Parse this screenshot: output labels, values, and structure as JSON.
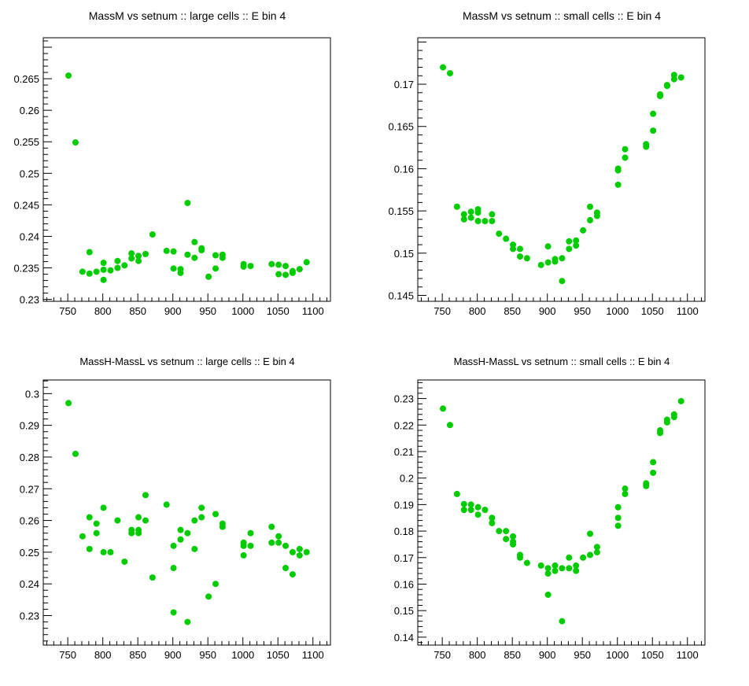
{
  "chart_data": [
    {
      "type": "scatter",
      "title": "MassM vs setnum :: large cells :: E bin 4",
      "xlabel": "",
      "ylabel": "",
      "xlim": [
        715,
        1125
      ],
      "ylim": [
        0.2297,
        0.2715
      ],
      "xticks": [
        750,
        800,
        850,
        900,
        950,
        1000,
        1050,
        1100
      ],
      "yticks": [
        0.23,
        0.235,
        0.24,
        0.245,
        0.25,
        0.255,
        0.26,
        0.265
      ],
      "ytick_labels": [
        "0.23",
        "0.235",
        "0.24",
        "0.245",
        "0.25",
        "0.255",
        "0.26",
        "0.265"
      ],
      "marker_color": "#00cc00",
      "grid": false,
      "points": [
        [
          751,
          0.2655
        ],
        [
          761,
          0.2549
        ],
        [
          771,
          0.2344
        ],
        [
          781,
          0.2375
        ],
        [
          781,
          0.2341
        ],
        [
          791,
          0.2344
        ],
        [
          801,
          0.2358
        ],
        [
          801,
          0.2347
        ],
        [
          801,
          0.2331
        ],
        [
          811,
          0.2346
        ],
        [
          821,
          0.2361
        ],
        [
          821,
          0.235
        ],
        [
          831,
          0.2354
        ],
        [
          841,
          0.2373
        ],
        [
          841,
          0.2365
        ],
        [
          851,
          0.2369
        ],
        [
          851,
          0.2361
        ],
        [
          861,
          0.2372
        ],
        [
          871,
          0.2403
        ],
        [
          891,
          0.2377
        ],
        [
          901,
          0.2376
        ],
        [
          901,
          0.2349
        ],
        [
          911,
          0.2348
        ],
        [
          911,
          0.2342
        ],
        [
          921,
          0.2453
        ],
        [
          921,
          0.2371
        ],
        [
          931,
          0.2391
        ],
        [
          931,
          0.2366
        ],
        [
          941,
          0.2381
        ],
        [
          941,
          0.2378
        ],
        [
          951,
          0.2336
        ],
        [
          961,
          0.237
        ],
        [
          961,
          0.2349
        ],
        [
          971,
          0.2371
        ],
        [
          971,
          0.2366
        ],
        [
          1001,
          0.2356
        ],
        [
          1001,
          0.2352
        ],
        [
          1011,
          0.2353
        ],
        [
          1041,
          0.2356
        ],
        [
          1051,
          0.2355
        ],
        [
          1051,
          0.234
        ],
        [
          1061,
          0.2353
        ],
        [
          1061,
          0.2339
        ],
        [
          1071,
          0.2345
        ],
        [
          1071,
          0.2342
        ],
        [
          1081,
          0.2348
        ],
        [
          1091,
          0.2359
        ]
      ]
    },
    {
      "type": "scatter",
      "title": "MassM vs setnum :: small cells :: E bin 4",
      "xlabel": "",
      "ylabel": "",
      "xlim": [
        715,
        1125
      ],
      "ylim": [
        0.1443,
        0.1755
      ],
      "xticks": [
        750,
        800,
        850,
        900,
        950,
        1000,
        1050,
        1100
      ],
      "yticks": [
        0.145,
        0.15,
        0.155,
        0.16,
        0.165,
        0.17
      ],
      "ytick_labels": [
        "0.145",
        "0.15",
        "0.155",
        "0.16",
        "0.165",
        "0.17"
      ],
      "marker_color": "#00cc00",
      "grid": false,
      "points": [
        [
          751,
          0.172
        ],
        [
          761,
          0.1713
        ],
        [
          771,
          0.1555
        ],
        [
          781,
          0.1546
        ],
        [
          781,
          0.154
        ],
        [
          791,
          0.1549
        ],
        [
          791,
          0.1542
        ],
        [
          801,
          0.1552
        ],
        [
          801,
          0.1548
        ],
        [
          801,
          0.1538
        ],
        [
          811,
          0.1538
        ],
        [
          821,
          0.1546
        ],
        [
          821,
          0.1538
        ],
        [
          831,
          0.1523
        ],
        [
          841,
          0.1517
        ],
        [
          851,
          0.151
        ],
        [
          851,
          0.1505
        ],
        [
          861,
          0.1505
        ],
        [
          861,
          0.1496
        ],
        [
          871,
          0.1494
        ],
        [
          891,
          0.1486
        ],
        [
          901,
          0.1508
        ],
        [
          901,
          0.1489
        ],
        [
          911,
          0.1493
        ],
        [
          911,
          0.149
        ],
        [
          921,
          0.1494
        ],
        [
          921,
          0.1467
        ],
        [
          931,
          0.1514
        ],
        [
          931,
          0.1505
        ],
        [
          941,
          0.1515
        ],
        [
          941,
          0.1509
        ],
        [
          951,
          0.1527
        ],
        [
          961,
          0.1555
        ],
        [
          961,
          0.1539
        ],
        [
          971,
          0.1548
        ],
        [
          971,
          0.1544
        ],
        [
          1001,
          0.16
        ],
        [
          1001,
          0.1598
        ],
        [
          1001,
          0.1581
        ],
        [
          1011,
          0.1623
        ],
        [
          1011,
          0.1613
        ],
        [
          1041,
          0.1629
        ],
        [
          1041,
          0.1626
        ],
        [
          1051,
          0.1665
        ],
        [
          1051,
          0.1645
        ],
        [
          1061,
          0.1688
        ],
        [
          1061,
          0.1686
        ],
        [
          1071,
          0.1699
        ],
        [
          1071,
          0.1698
        ],
        [
          1081,
          0.1711
        ],
        [
          1081,
          0.1706
        ],
        [
          1091,
          0.1708
        ]
      ]
    },
    {
      "type": "scatter",
      "title": "MassH-MassL vs setnum :: large cells :: E bin 4",
      "xlabel": "",
      "ylabel": "",
      "xlim": [
        715,
        1125
      ],
      "ylim": [
        0.2207,
        0.3043
      ],
      "xticks": [
        750,
        800,
        850,
        900,
        950,
        1000,
        1050,
        1100
      ],
      "yticks": [
        0.23,
        0.24,
        0.25,
        0.26,
        0.27,
        0.28,
        0.29,
        0.3
      ],
      "ytick_labels": [
        "0.23",
        "0.24",
        "0.25",
        "0.26",
        "0.27",
        "0.28",
        "0.29",
        "0.3"
      ],
      "marker_color": "#00cc00",
      "grid": false,
      "points": [
        [
          751,
          0.297
        ],
        [
          761,
          0.281
        ],
        [
          771,
          0.255
        ],
        [
          781,
          0.261
        ],
        [
          781,
          0.251
        ],
        [
          791,
          0.259
        ],
        [
          791,
          0.256
        ],
        [
          801,
          0.264
        ],
        [
          801,
          0.25
        ],
        [
          811,
          0.25
        ],
        [
          821,
          0.26
        ],
        [
          831,
          0.247
        ],
        [
          841,
          0.257
        ],
        [
          841,
          0.256
        ],
        [
          851,
          0.261
        ],
        [
          851,
          0.257
        ],
        [
          851,
          0.256
        ],
        [
          861,
          0.268
        ],
        [
          861,
          0.26
        ],
        [
          871,
          0.242
        ],
        [
          891,
          0.265
        ],
        [
          901,
          0.252
        ],
        [
          901,
          0.245
        ],
        [
          901,
          0.231
        ],
        [
          911,
          0.257
        ],
        [
          911,
          0.254
        ],
        [
          921,
          0.256
        ],
        [
          921,
          0.228
        ],
        [
          931,
          0.26
        ],
        [
          931,
          0.251
        ],
        [
          941,
          0.264
        ],
        [
          941,
          0.261
        ],
        [
          951,
          0.236
        ],
        [
          961,
          0.262
        ],
        [
          961,
          0.24
        ],
        [
          971,
          0.259
        ],
        [
          971,
          0.258
        ],
        [
          1001,
          0.253
        ],
        [
          1001,
          0.252
        ],
        [
          1001,
          0.249
        ],
        [
          1011,
          0.256
        ],
        [
          1011,
          0.252
        ],
        [
          1041,
          0.258
        ],
        [
          1041,
          0.253
        ],
        [
          1051,
          0.255
        ],
        [
          1051,
          0.253
        ],
        [
          1061,
          0.252
        ],
        [
          1061,
          0.245
        ],
        [
          1071,
          0.25
        ],
        [
          1071,
          0.243
        ],
        [
          1081,
          0.251
        ],
        [
          1081,
          0.249
        ],
        [
          1091,
          0.25
        ]
      ]
    },
    {
      "type": "scatter",
      "title": "MassH-MassL vs setnum :: small cells :: E bin 4",
      "xlabel": "",
      "ylabel": "",
      "xlim": [
        715,
        1125
      ],
      "ylim": [
        0.137,
        0.237
      ],
      "xticks": [
        750,
        800,
        850,
        900,
        950,
        1000,
        1050,
        1100
      ],
      "yticks": [
        0.14,
        0.15,
        0.16,
        0.17,
        0.18,
        0.19,
        0.2,
        0.21,
        0.22,
        0.23
      ],
      "ytick_labels": [
        "0.14",
        "0.15",
        "0.16",
        "0.17",
        "0.18",
        "0.19",
        "0.2",
        "0.21",
        "0.22",
        "0.23"
      ],
      "marker_color": "#00cc00",
      "grid": false,
      "points": [
        [
          751,
          0.2262
        ],
        [
          761,
          0.22
        ],
        [
          771,
          0.194
        ],
        [
          781,
          0.1902
        ],
        [
          781,
          0.188
        ],
        [
          791,
          0.19
        ],
        [
          791,
          0.188
        ],
        [
          801,
          0.189
        ],
        [
          801,
          0.1862
        ],
        [
          811,
          0.188
        ],
        [
          821,
          0.185
        ],
        [
          821,
          0.183
        ],
        [
          831,
          0.18
        ],
        [
          841,
          0.18
        ],
        [
          841,
          0.177
        ],
        [
          851,
          0.178
        ],
        [
          851,
          0.176
        ],
        [
          851,
          0.175
        ],
        [
          861,
          0.171
        ],
        [
          861,
          0.17
        ],
        [
          871,
          0.168
        ],
        [
          891,
          0.167
        ],
        [
          901,
          0.166
        ],
        [
          901,
          0.164
        ],
        [
          901,
          0.156
        ],
        [
          911,
          0.167
        ],
        [
          911,
          0.165
        ],
        [
          921,
          0.166
        ],
        [
          921,
          0.146
        ],
        [
          931,
          0.17
        ],
        [
          931,
          0.166
        ],
        [
          941,
          0.167
        ],
        [
          941,
          0.165
        ],
        [
          951,
          0.17
        ],
        [
          961,
          0.179
        ],
        [
          961,
          0.171
        ],
        [
          971,
          0.174
        ],
        [
          971,
          0.172
        ],
        [
          1001,
          0.189
        ],
        [
          1001,
          0.185
        ],
        [
          1001,
          0.182
        ],
        [
          1011,
          0.196
        ],
        [
          1011,
          0.194
        ],
        [
          1041,
          0.198
        ],
        [
          1041,
          0.197
        ],
        [
          1051,
          0.206
        ],
        [
          1051,
          0.202
        ],
        [
          1061,
          0.218
        ],
        [
          1061,
          0.217
        ],
        [
          1071,
          0.222
        ],
        [
          1071,
          0.221
        ],
        [
          1081,
          0.224
        ],
        [
          1081,
          0.223
        ],
        [
          1091,
          0.229
        ]
      ]
    }
  ]
}
